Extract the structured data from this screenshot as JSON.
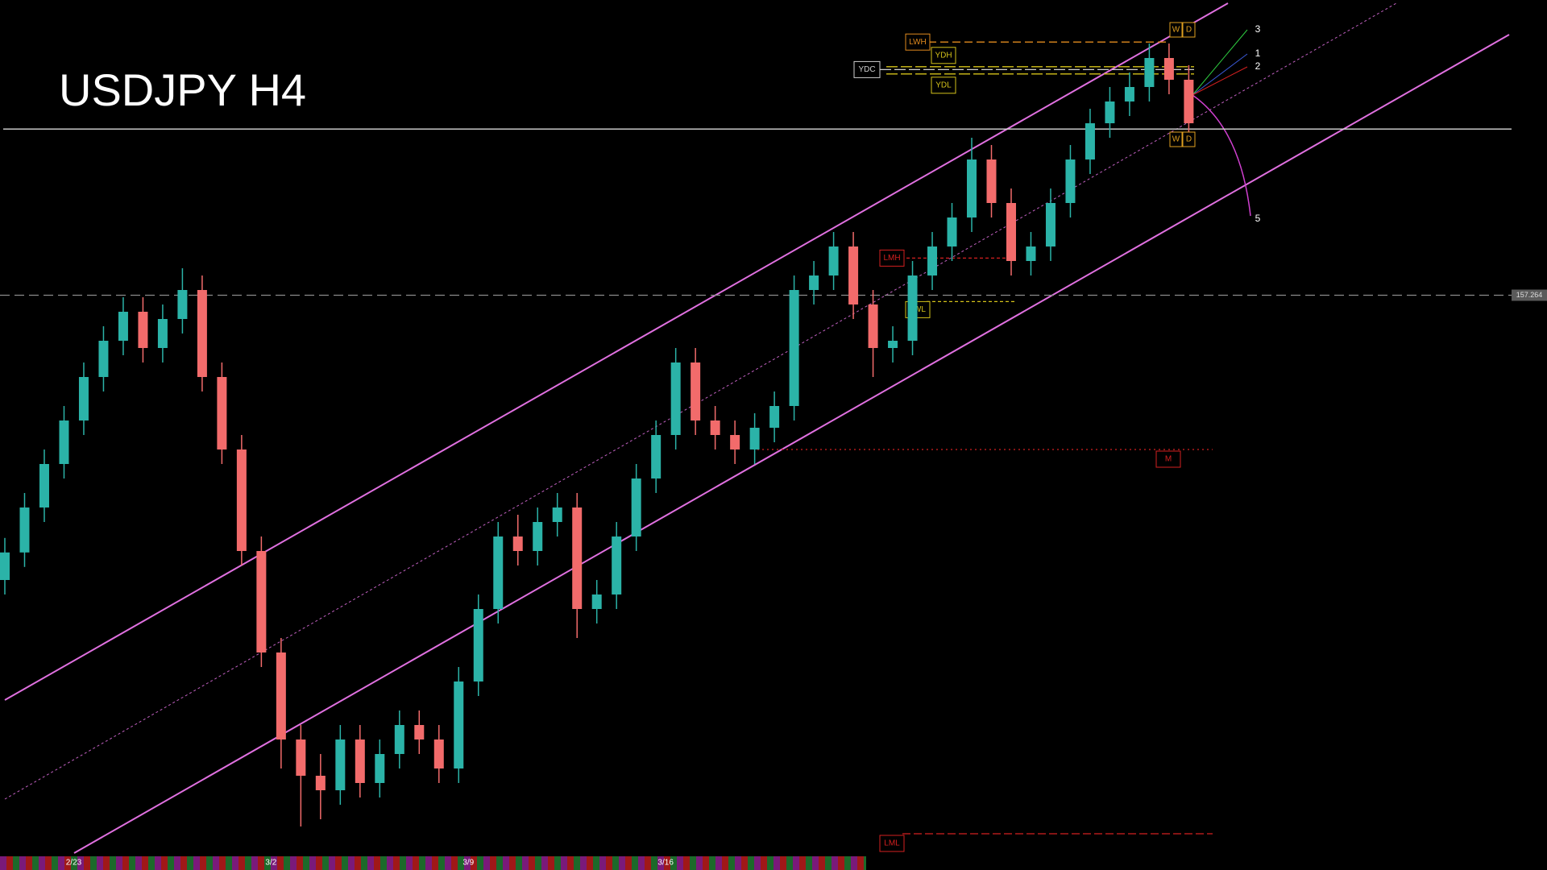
{
  "chart_data": {
    "type": "candlestick",
    "title": "USDJPY H4",
    "categories": [
      null,
      null,
      null,
      "2/23",
      null,
      null,
      null,
      null,
      null,
      null,
      null,
      null,
      null,
      "3/2",
      null,
      null,
      null,
      null,
      null,
      null,
      null,
      null,
      null,
      "3/9",
      null,
      null,
      null,
      null,
      null,
      null,
      null,
      null,
      null,
      "3/16",
      null,
      null,
      null,
      null,
      null,
      null,
      null,
      null,
      null,
      null,
      null,
      null,
      null,
      null,
      null,
      null,
      null,
      null,
      null,
      null,
      null,
      null,
      null,
      null,
      null,
      null,
      null
    ],
    "open": [
      155.3,
      155.49,
      155.8,
      156.1,
      156.4,
      156.7,
      156.95,
      157.15,
      156.9,
      157.1,
      157.3,
      156.7,
      156.2,
      155.5,
      154.8,
      154.2,
      153.95,
      153.85,
      154.2,
      153.9,
      154.1,
      154.3,
      154.2,
      154.0,
      154.6,
      155.1,
      155.6,
      155.5,
      155.7,
      155.8,
      155.1,
      155.2,
      155.6,
      156.0,
      156.3,
      156.8,
      156.4,
      156.3,
      156.2,
      156.35,
      156.5,
      157.3,
      157.4,
      157.6,
      157.2,
      156.9,
      156.95,
      157.4,
      157.6,
      157.8,
      158.2,
      157.9,
      157.5,
      157.6,
      157.9,
      158.2,
      158.45,
      158.6,
      158.7,
      158.9,
      158.75
    ],
    "high": [
      155.59,
      155.9,
      156.2,
      156.5,
      156.8,
      157.05,
      157.25,
      157.25,
      157.2,
      157.45,
      157.4,
      156.8,
      156.3,
      155.6,
      154.9,
      154.3,
      154.1,
      154.3,
      154.3,
      154.2,
      154.4,
      154.4,
      154.3,
      154.7,
      155.2,
      155.7,
      155.75,
      155.8,
      155.9,
      155.9,
      155.3,
      155.7,
      156.1,
      156.4,
      156.9,
      156.9,
      156.5,
      156.4,
      156.45,
      156.6,
      157.4,
      157.5,
      157.7,
      157.7,
      157.3,
      157.05,
      157.5,
      157.7,
      157.9,
      158.35,
      158.3,
      158.0,
      157.7,
      158.0,
      158.3,
      158.55,
      158.7,
      158.8,
      159.0,
      159.0,
      158.85
    ],
    "low": [
      155.2,
      155.39,
      155.7,
      156.0,
      156.3,
      156.6,
      156.85,
      156.8,
      156.8,
      157.0,
      156.6,
      156.1,
      155.4,
      154.7,
      154.0,
      153.6,
      153.65,
      153.75,
      153.8,
      153.8,
      154.0,
      154.1,
      153.9,
      153.9,
      154.5,
      155.0,
      155.4,
      155.4,
      155.6,
      154.9,
      155.0,
      155.1,
      155.5,
      155.9,
      156.2,
      156.3,
      156.2,
      156.1,
      156.1,
      156.25,
      156.4,
      157.2,
      157.3,
      157.1,
      156.7,
      156.8,
      156.85,
      157.3,
      157.5,
      157.7,
      157.8,
      157.4,
      157.4,
      157.5,
      157.8,
      158.1,
      158.35,
      158.5,
      158.6,
      158.65,
      158.35
    ],
    "close": [
      155.49,
      155.8,
      156.1,
      156.4,
      156.7,
      156.95,
      157.15,
      156.9,
      157.1,
      157.3,
      156.7,
      156.2,
      155.5,
      154.8,
      154.2,
      153.95,
      153.85,
      154.2,
      153.9,
      154.1,
      154.3,
      154.2,
      154.0,
      154.6,
      155.1,
      155.6,
      155.5,
      155.7,
      155.8,
      155.1,
      155.2,
      155.6,
      156.0,
      156.3,
      156.8,
      156.4,
      156.3,
      156.2,
      156.35,
      156.5,
      157.3,
      157.4,
      157.6,
      157.2,
      156.9,
      156.95,
      157.4,
      157.6,
      157.8,
      158.2,
      157.9,
      157.5,
      157.6,
      157.9,
      158.2,
      158.45,
      158.6,
      158.7,
      158.9,
      158.75,
      158.45
    ],
    "ylim": [
      153.3,
      159.3
    ],
    "up_color": "#2bb3a8",
    "down_color": "#f26b6b",
    "levels": [
      {
        "label": "LWH",
        "value": 159.01,
        "color": "#e08a1e"
      },
      {
        "label": "YDH",
        "value": 158.84,
        "color": "#d4c21a"
      },
      {
        "label": "YDC",
        "value": 158.82,
        "color": "#cfcfcf"
      },
      {
        "label": "YDL",
        "value": 158.79,
        "color": "#d4c21a"
      },
      {
        "label": "LMH",
        "value": 157.52,
        "color": "#d42020"
      },
      {
        "label": "LWL",
        "value": 157.22,
        "color": "#d4c21a"
      },
      {
        "label": "M",
        "value": 156.2,
        "color": "#d42020"
      },
      {
        "label": "LML",
        "value": 153.55,
        "color": "#d42020"
      }
    ],
    "price_line": 157.264,
    "bid_line": 158.41,
    "wave_labels": [
      "3",
      "1",
      "2",
      "5"
    ],
    "timeframe_boxes": [
      "W",
      "D"
    ]
  }
}
